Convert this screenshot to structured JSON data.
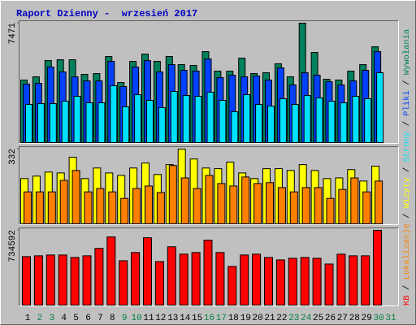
{
  "title": "Raport Dzienny -  wrzesień 2017",
  "legend_separator": " / ",
  "chart_data": [
    {
      "type": "bar",
      "ylim": [
        0,
        7471
      ],
      "yticks": [
        7471
      ],
      "series": [
        {
          "name": "Wywołania",
          "color": "#00805c",
          "values": [
            3912,
            4115,
            5131,
            5182,
            5182,
            4268,
            4318,
            5385,
            3759,
            5080,
            5537,
            5080,
            5385,
            4877,
            4826,
            5690,
            4470,
            4470,
            5283,
            4318,
            4369,
            4928,
            4115,
            7471,
            5639,
            3962,
            3912,
            4470,
            4877,
            5994,
            null
          ]
        },
        {
          "name": "Pliki",
          "color": "#0040ff",
          "values": [
            3658,
            3709,
            4725,
            4420,
            4115,
            3861,
            3861,
            5080,
            3505,
            4725,
            5131,
            4420,
            4877,
            4521,
            4470,
            5232,
            4064,
            4216,
            4115,
            4166,
            3912,
            4674,
            3607,
            4369,
            4216,
            3810,
            3607,
            3861,
            4521,
            5690,
            null
          ]
        },
        {
          "name": "Strony",
          "color": "#00e0ff",
          "values": [
            2388,
            2439,
            2439,
            2591,
            2896,
            2489,
            2489,
            3556,
            2235,
            2997,
            2642,
            2184,
            3200,
            2946,
            2896,
            3150,
            2642,
            1930,
            2997,
            2388,
            2286,
            2743,
            2388,
            2946,
            2794,
            2591,
            2489,
            2896,
            2743,
            4369,
            null
          ]
        }
      ]
    },
    {
      "type": "bar",
      "ylim": [
        0,
        332
      ],
      "yticks": [
        332
      ],
      "series": [
        {
          "name": "Wizyty",
          "color": "#ffff00",
          "values": [
            201,
            212,
            230,
            226,
            296,
            201,
            248,
            226,
            215,
            248,
            270,
            219,
            263,
            332,
            288,
            248,
            245,
            274,
            226,
            201,
            245,
            245,
            237,
            263,
            237,
            201,
            204,
            241,
            190,
            256,
            null
          ]
        },
        {
          "name": "Lokalizacje",
          "color": "#ff8000",
          "values": [
            142,
            142,
            142,
            193,
            237,
            142,
            157,
            142,
            113,
            157,
            168,
            139,
            259,
            204,
            157,
            215,
            179,
            168,
            208,
            179,
            183,
            161,
            142,
            161,
            161,
            113,
            153,
            204,
            142,
            190,
            null
          ]
        }
      ]
    },
    {
      "type": "bar",
      "ylim": [
        0,
        734592
      ],
      "yticks": [
        734592
      ],
      "categories": [
        "1",
        "2",
        "3",
        "4",
        "5",
        "6",
        "7",
        "8",
        "9",
        "10",
        "11",
        "12",
        "13",
        "14",
        "15",
        "16",
        "17",
        "18",
        "19",
        "20",
        "21",
        "22",
        "23",
        "24",
        "25",
        "26",
        "27",
        "28",
        "29",
        "30",
        "31"
      ],
      "category_colors": [
        "#000000",
        "#008040",
        "#008040",
        "#000000",
        "#000000",
        "#000000",
        "#000000",
        "#000000",
        "#008040",
        "#008040",
        "#000000",
        "#000000",
        "#000000",
        "#000000",
        "#000000",
        "#008040",
        "#008040",
        "#000000",
        "#000000",
        "#000000",
        "#000000",
        "#000000",
        "#008040",
        "#008040",
        "#000000",
        "#000000",
        "#000000",
        "#000000",
        "#000000",
        "#008040",
        "#008040"
      ],
      "series": [
        {
          "name": "KB",
          "color": "#ff0000",
          "values": [
            476250,
            484320,
            492390,
            492390,
            468180,
            484320,
            556970,
            669980,
            435890,
            516610,
            661900,
            427820,
            573110,
            500460,
            516610,
            637690,
            516610,
            379380,
            492390,
            500460,
            468180,
            443960,
            460100,
            468180,
            460100,
            403600,
            500460,
            484320,
            484320,
            734592,
            null
          ]
        }
      ]
    }
  ]
}
